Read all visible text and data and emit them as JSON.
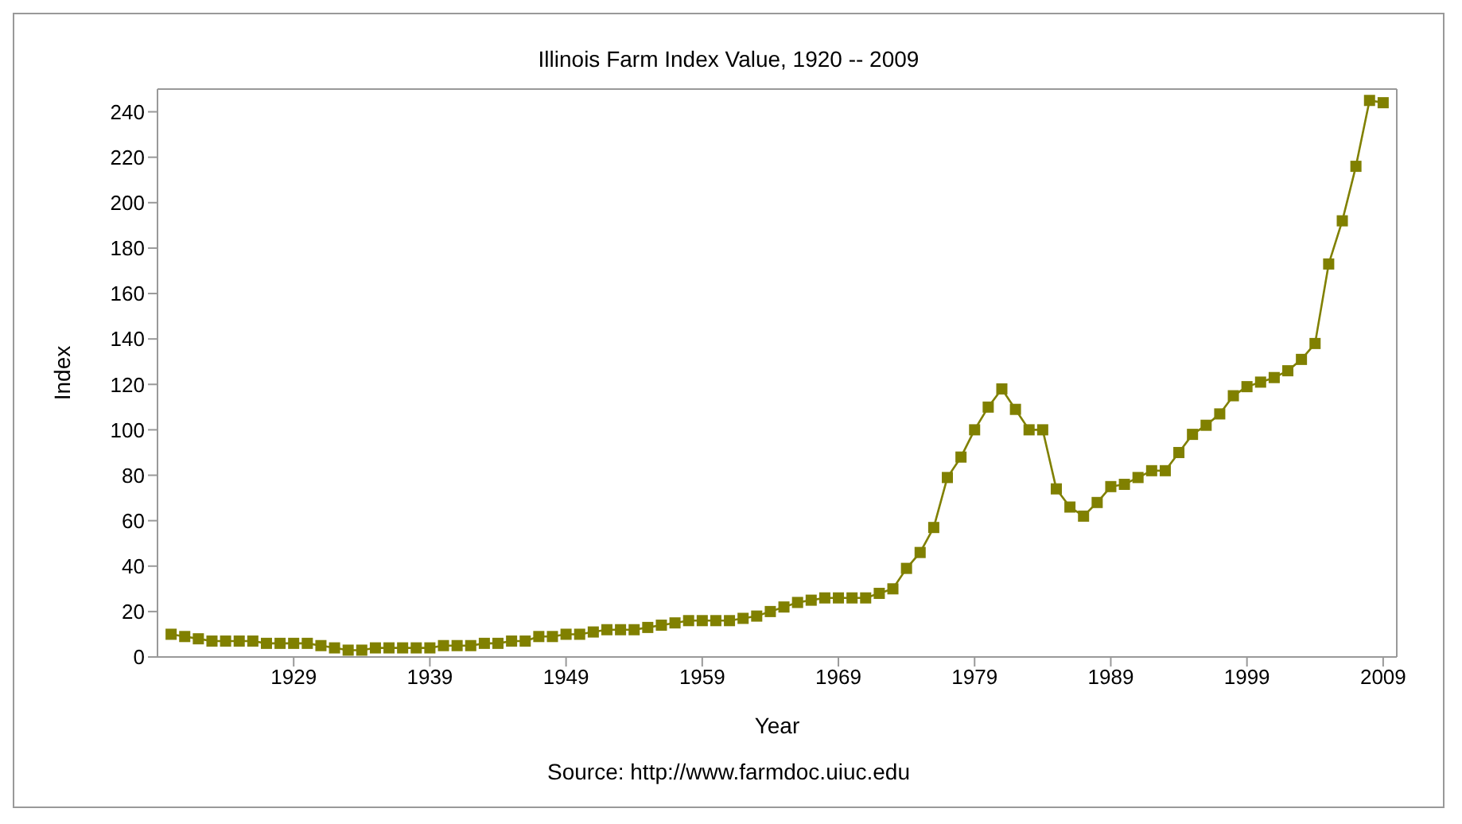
{
  "chart_data": {
    "type": "line",
    "title": "Illinois Farm Index Value, 1920 -- 2009",
    "xlabel": "Year",
    "ylabel": "Index",
    "annotations": [
      "Source: http://www.farmdoc.uiuc.edu"
    ],
    "x": [
      1920,
      1921,
      1922,
      1923,
      1924,
      1925,
      1926,
      1927,
      1928,
      1929,
      1930,
      1931,
      1932,
      1933,
      1934,
      1935,
      1936,
      1937,
      1938,
      1939,
      1940,
      1941,
      1942,
      1943,
      1944,
      1945,
      1946,
      1947,
      1948,
      1949,
      1950,
      1951,
      1952,
      1953,
      1954,
      1955,
      1956,
      1957,
      1958,
      1959,
      1960,
      1961,
      1962,
      1963,
      1964,
      1965,
      1966,
      1967,
      1968,
      1969,
      1970,
      1971,
      1972,
      1973,
      1974,
      1975,
      1976,
      1977,
      1978,
      1979,
      1980,
      1981,
      1982,
      1983,
      1984,
      1985,
      1986,
      1987,
      1988,
      1989,
      1990,
      1991,
      1992,
      1993,
      1994,
      1995,
      1996,
      1997,
      1998,
      1999,
      2000,
      2001,
      2002,
      2003,
      2004,
      2005,
      2006,
      2007,
      2008,
      2009
    ],
    "series": [
      {
        "color": "#808000",
        "values": [
          10,
          9,
          8,
          7,
          7,
          7,
          7,
          6,
          6,
          6,
          6,
          5,
          4,
          3,
          3,
          4,
          4,
          4,
          4,
          4,
          5,
          5,
          5,
          6,
          6,
          7,
          7,
          9,
          9,
          10,
          10,
          11,
          12,
          12,
          12,
          13,
          14,
          15,
          16,
          16,
          16,
          16,
          17,
          18,
          20,
          22,
          24,
          25,
          26,
          26,
          26,
          26,
          28,
          30,
          39,
          46,
          57,
          79,
          88,
          100,
          110,
          118,
          109,
          100,
          100,
          74,
          66,
          62,
          68,
          75,
          76,
          79,
          82,
          82,
          90,
          98,
          102,
          107,
          115,
          119,
          121,
          123,
          126,
          131,
          138,
          173,
          192,
          216,
          245,
          244
        ]
      }
    ],
    "xlim": [
      1919,
      2010
    ],
    "xticks": [
      1929,
      1939,
      1949,
      1959,
      1969,
      1979,
      1989,
      1999,
      2009
    ],
    "ylim": [
      0,
      250
    ],
    "yticks": [
      0,
      20,
      40,
      60,
      80,
      100,
      120,
      140,
      160,
      180,
      200,
      220,
      240
    ],
    "grid": false,
    "legend": false,
    "marker": "square",
    "line_style": "solid"
  }
}
